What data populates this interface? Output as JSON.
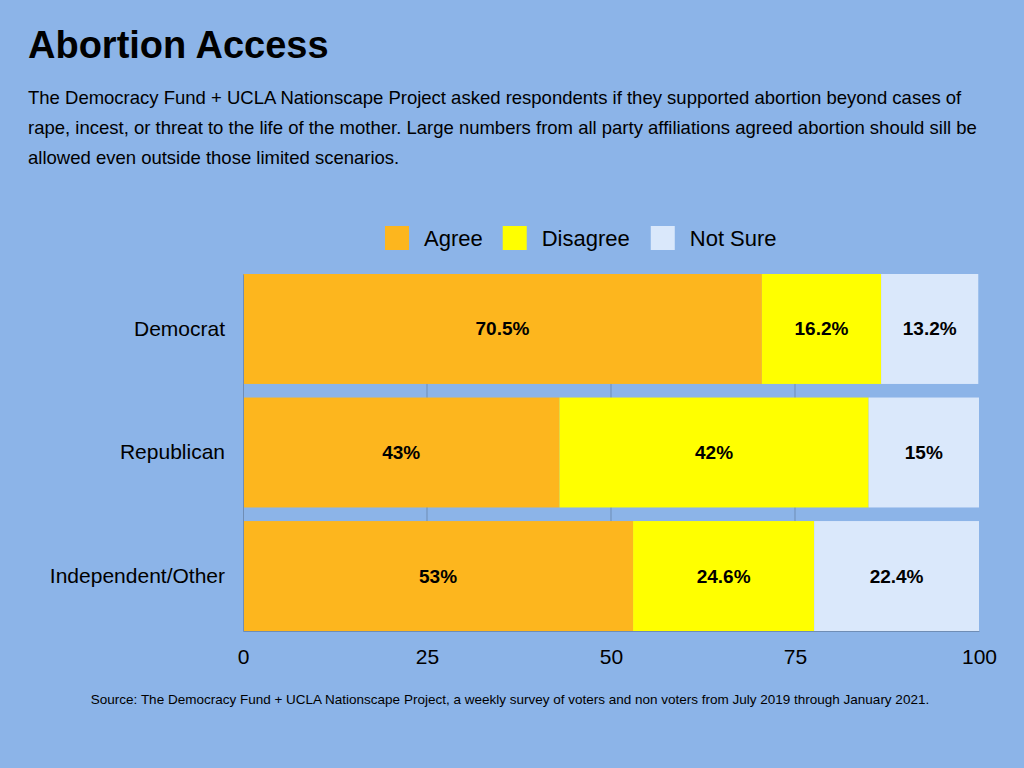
{
  "chart_data": {
    "type": "bar",
    "orientation": "horizontal",
    "stacked": true,
    "title": "Abortion Access",
    "subtitle": "The Democracy Fund + UCLA Nationscape Project asked respondents if they supported abortion beyond cases of rape, incest, or threat to the life of the mother. Large numbers from all party affiliations agreed abortion should sill be allowed even outside those limited scenarios.",
    "source": "Source: The Democracy Fund + UCLA Nationscape Project, a weekly survey of voters and non voters from July 2019 through January 2021.",
    "categories": [
      "Democrat",
      "Republican",
      "Independent/Other"
    ],
    "series": [
      {
        "name": "Agree",
        "color": "#fdb61e",
        "values": [
          70.5,
          43,
          53
        ],
        "value_labels": [
          "70.5%",
          "43%",
          "53%"
        ]
      },
      {
        "name": "Disagree",
        "color": "#ffff00",
        "values": [
          16.2,
          42,
          24.6
        ],
        "value_labels": [
          "16.2%",
          "42%",
          "24.6%"
        ]
      },
      {
        "name": "Not Sure",
        "color": "#dae8fb",
        "values": [
          13.2,
          15,
          22.4
        ],
        "value_labels": [
          "13.2%",
          "15%",
          "22.4%"
        ]
      }
    ],
    "xlim": [
      0,
      100
    ],
    "xticks": [
      0,
      25,
      50,
      75,
      100
    ],
    "grid": true,
    "legend": "top",
    "data_labels": true
  }
}
